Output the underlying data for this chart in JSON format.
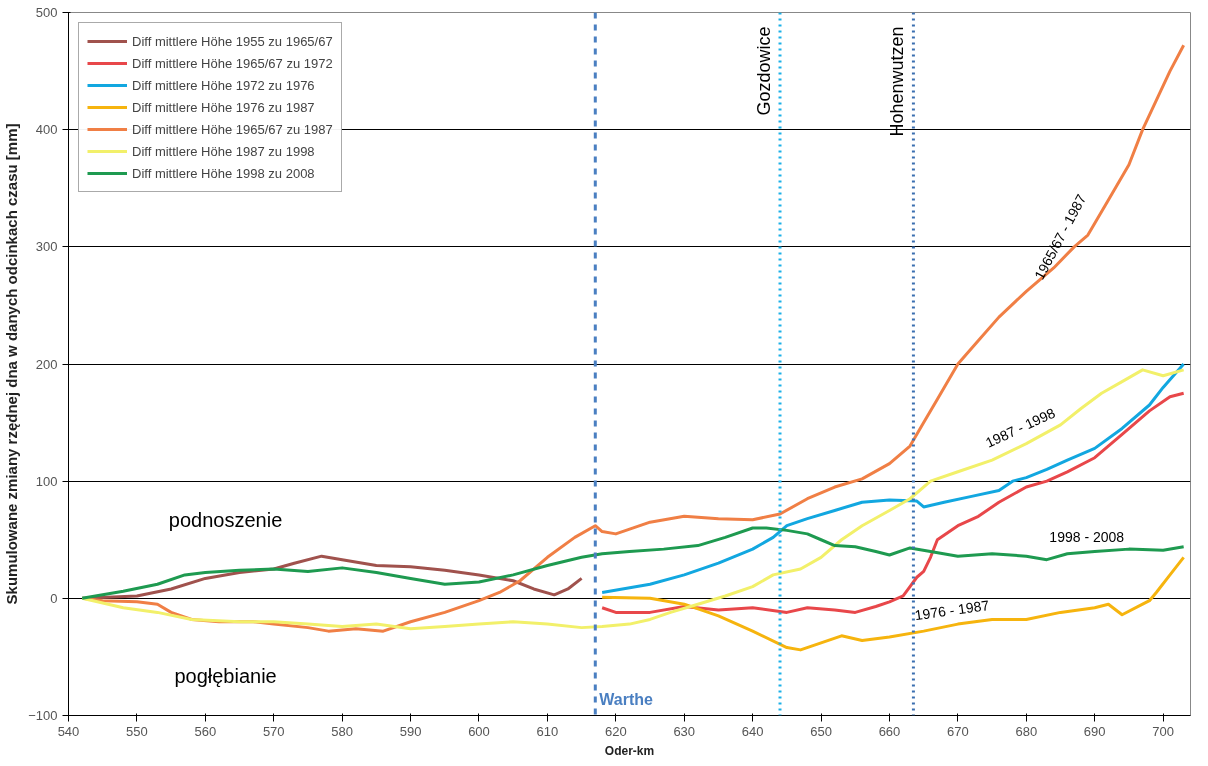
{
  "chart_data": {
    "type": "line",
    "xlabel": "Oder-km",
    "ylabel": "Skumulowane zmiany rzędnej dna w danych odcinkach czasu [mm]",
    "xlim": [
      540,
      704
    ],
    "xticks": [
      540,
      550,
      560,
      570,
      580,
      590,
      600,
      610,
      620,
      630,
      640,
      650,
      660,
      670,
      680,
      690,
      700
    ],
    "ylim": [
      -100,
      500
    ],
    "yticks": [
      -100,
      0,
      100,
      200,
      300,
      400,
      500
    ],
    "grid": "y",
    "legend": "top left",
    "line_style": "solid",
    "series": [
      {
        "name": "Diff mittlere Höhe 1955 zu 1965/67",
        "color": "#a0524d",
        "x": [
          542,
          550,
          555,
          560,
          565,
          570,
          573,
          577,
          580,
          585,
          590,
          595,
          600,
          605,
          608,
          611,
          613,
          615
        ],
        "values": [
          0,
          2,
          8,
          17,
          22,
          25,
          30,
          36,
          33,
          28,
          27,
          24,
          20,
          15,
          8,
          3,
          8,
          17
        ]
      },
      {
        "name": "Diff mittlere Höhe 1965/67 zu 1972",
        "color": "#e8474a",
        "x": [
          618,
          620,
          625,
          630,
          635,
          640,
          645,
          648,
          652,
          655,
          658,
          660,
          662,
          663,
          664,
          665,
          666,
          667,
          670,
          673,
          676,
          680,
          683,
          686,
          690,
          694,
          698,
          701,
          703
        ],
        "values": [
          -8,
          -12,
          -12,
          -7,
          -10,
          -8,
          -12,
          -8,
          -10,
          -12,
          -7,
          -3,
          2,
          10,
          18,
          23,
          35,
          50,
          62,
          70,
          82,
          95,
          100,
          108,
          120,
          140,
          160,
          172,
          175
        ]
      },
      {
        "name": "Diff mittlere Höhe 1972 zu 1976",
        "color": "#12a7e0",
        "x": [
          618,
          625,
          630,
          635,
          640,
          643,
          645,
          648,
          652,
          656,
          660,
          664,
          665,
          668,
          672,
          676,
          678,
          680,
          683,
          686,
          690,
          694,
          698,
          700,
          703
        ],
        "values": [
          5,
          12,
          20,
          30,
          42,
          52,
          62,
          68,
          75,
          82,
          84,
          83,
          78,
          82,
          87,
          92,
          100,
          103,
          110,
          118,
          128,
          145,
          165,
          180,
          200
        ]
      },
      {
        "name": "Diff mittlere Höhe 1976 zu 1987",
        "color": "#f6b40e",
        "x": [
          618,
          625,
          630,
          635,
          640,
          645,
          647,
          650,
          653,
          656,
          660,
          665,
          670,
          675,
          680,
          685,
          690,
          692,
          694,
          697,
          698,
          699,
          701,
          703
        ],
        "values": [
          1,
          0,
          -5,
          -15,
          -28,
          -42,
          -44,
          -38,
          -32,
          -36,
          -33,
          -28,
          -22,
          -18,
          -18,
          -12,
          -8,
          -5,
          -14,
          -5,
          -2,
          5,
          20,
          35
        ]
      },
      {
        "name": "Diff mittlere Höhe 1965/67 zu 1987",
        "color": "#f07f45",
        "x": [
          542,
          545,
          550,
          553,
          555,
          558,
          562,
          567,
          570,
          575,
          578,
          582,
          586,
          590,
          595,
          600,
          603,
          606,
          610,
          614,
          617,
          618,
          620,
          625,
          630,
          635,
          640,
          644,
          648,
          652,
          656,
          660,
          663,
          665,
          667,
          670,
          673,
          676,
          680,
          684,
          687,
          689,
          692,
          695,
          697,
          699,
          701,
          703
        ],
        "values": [
          0,
          -2,
          -3,
          -5,
          -12,
          -18,
          -20,
          -20,
          -22,
          -25,
          -28,
          -26,
          -28,
          -20,
          -12,
          -2,
          5,
          15,
          35,
          52,
          62,
          57,
          55,
          65,
          70,
          68,
          67,
          72,
          85,
          95,
          102,
          115,
          130,
          150,
          170,
          200,
          220,
          240,
          262,
          282,
          300,
          310,
          340,
          370,
          400,
          425,
          450,
          472
        ]
      },
      {
        "name": "Diff mittlere Höhe 1987 zu 1998",
        "color": "#f2f06a",
        "x": [
          542,
          548,
          553,
          558,
          565,
          570,
          575,
          580,
          585,
          590,
          595,
          600,
          605,
          610,
          615,
          618,
          622,
          625,
          628,
          632,
          636,
          640,
          643,
          647,
          650,
          653,
          656,
          660,
          663,
          666,
          670,
          675,
          680,
          685,
          688,
          691,
          694,
          697,
          700,
          703
        ],
        "values": [
          0,
          -8,
          -12,
          -18,
          -20,
          -20,
          -22,
          -24,
          -22,
          -26,
          -24,
          -22,
          -20,
          -22,
          -25,
          -24,
          -22,
          -18,
          -12,
          -5,
          2,
          10,
          20,
          25,
          35,
          50,
          62,
          75,
          85,
          100,
          108,
          118,
          132,
          148,
          162,
          175,
          185,
          195,
          190,
          195
        ]
      },
      {
        "name": "Diff mittlere Höhe 1998 zu 2008",
        "color": "#1e9a50",
        "x": [
          542,
          548,
          553,
          557,
          560,
          565,
          570,
          575,
          580,
          585,
          590,
          595,
          600,
          605,
          610,
          615,
          618,
          622,
          627,
          632,
          636,
          640,
          642,
          645,
          648,
          650,
          652,
          655,
          658,
          660,
          663,
          666,
          670,
          675,
          680,
          683,
          686,
          690,
          695,
          700,
          703
        ],
        "values": [
          0,
          6,
          12,
          20,
          22,
          24,
          25,
          23,
          26,
          22,
          17,
          12,
          14,
          20,
          28,
          35,
          38,
          40,
          42,
          45,
          52,
          60,
          60,
          58,
          55,
          50,
          45,
          44,
          40,
          37,
          43,
          40,
          36,
          38,
          36,
          33,
          38,
          40,
          42,
          41,
          44
        ]
      }
    ],
    "ref_lines": [
      {
        "axis": "x",
        "value": 617,
        "label": "Warthe",
        "color": "#4a7fc1",
        "line_style": "dashed"
      },
      {
        "axis": "x",
        "value": 644,
        "label": "Gozdowice",
        "color": "#1ab0e8",
        "line_style": "dotted"
      },
      {
        "axis": "x",
        "value": 663.5,
        "label": "Hohenwutzen",
        "color": "#3b6fb0",
        "line_style": "dotted"
      }
    ],
    "annotations": [
      {
        "text": "1965/67 - 1987",
        "x": 687,
        "y": 300
      },
      {
        "text": "1987 - 1998",
        "x": 680,
        "y": 132
      },
      {
        "text": "1998 - 2008",
        "x": 690,
        "y": 40
      },
      {
        "text": "1976 - 1987",
        "x": 670,
        "y": -22
      },
      "podnoszenie",
      "pogłębianie"
    ]
  }
}
